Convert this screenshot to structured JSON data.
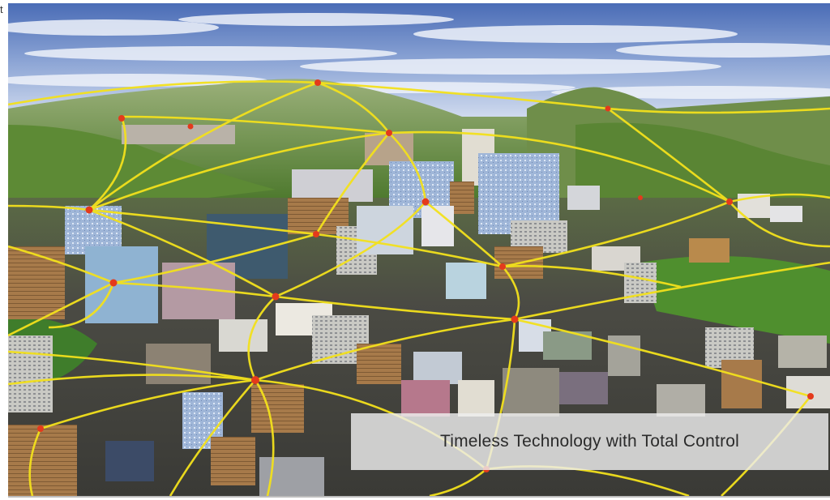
{
  "page": {
    "stray_text": "t",
    "caption": "Timeless Technology with Total Control"
  },
  "image": {
    "subject": "3d-city-network-rendering",
    "colors": {
      "sky_top": "#3f63b0",
      "sky_cloud": "#e9eef8",
      "mountain_green": "#5f8a3a",
      "mountain_light": "#a8b98a",
      "ground_dark": "#4a4a44",
      "network_line": "#f2e21a",
      "network_node": "#e43a1c"
    }
  }
}
